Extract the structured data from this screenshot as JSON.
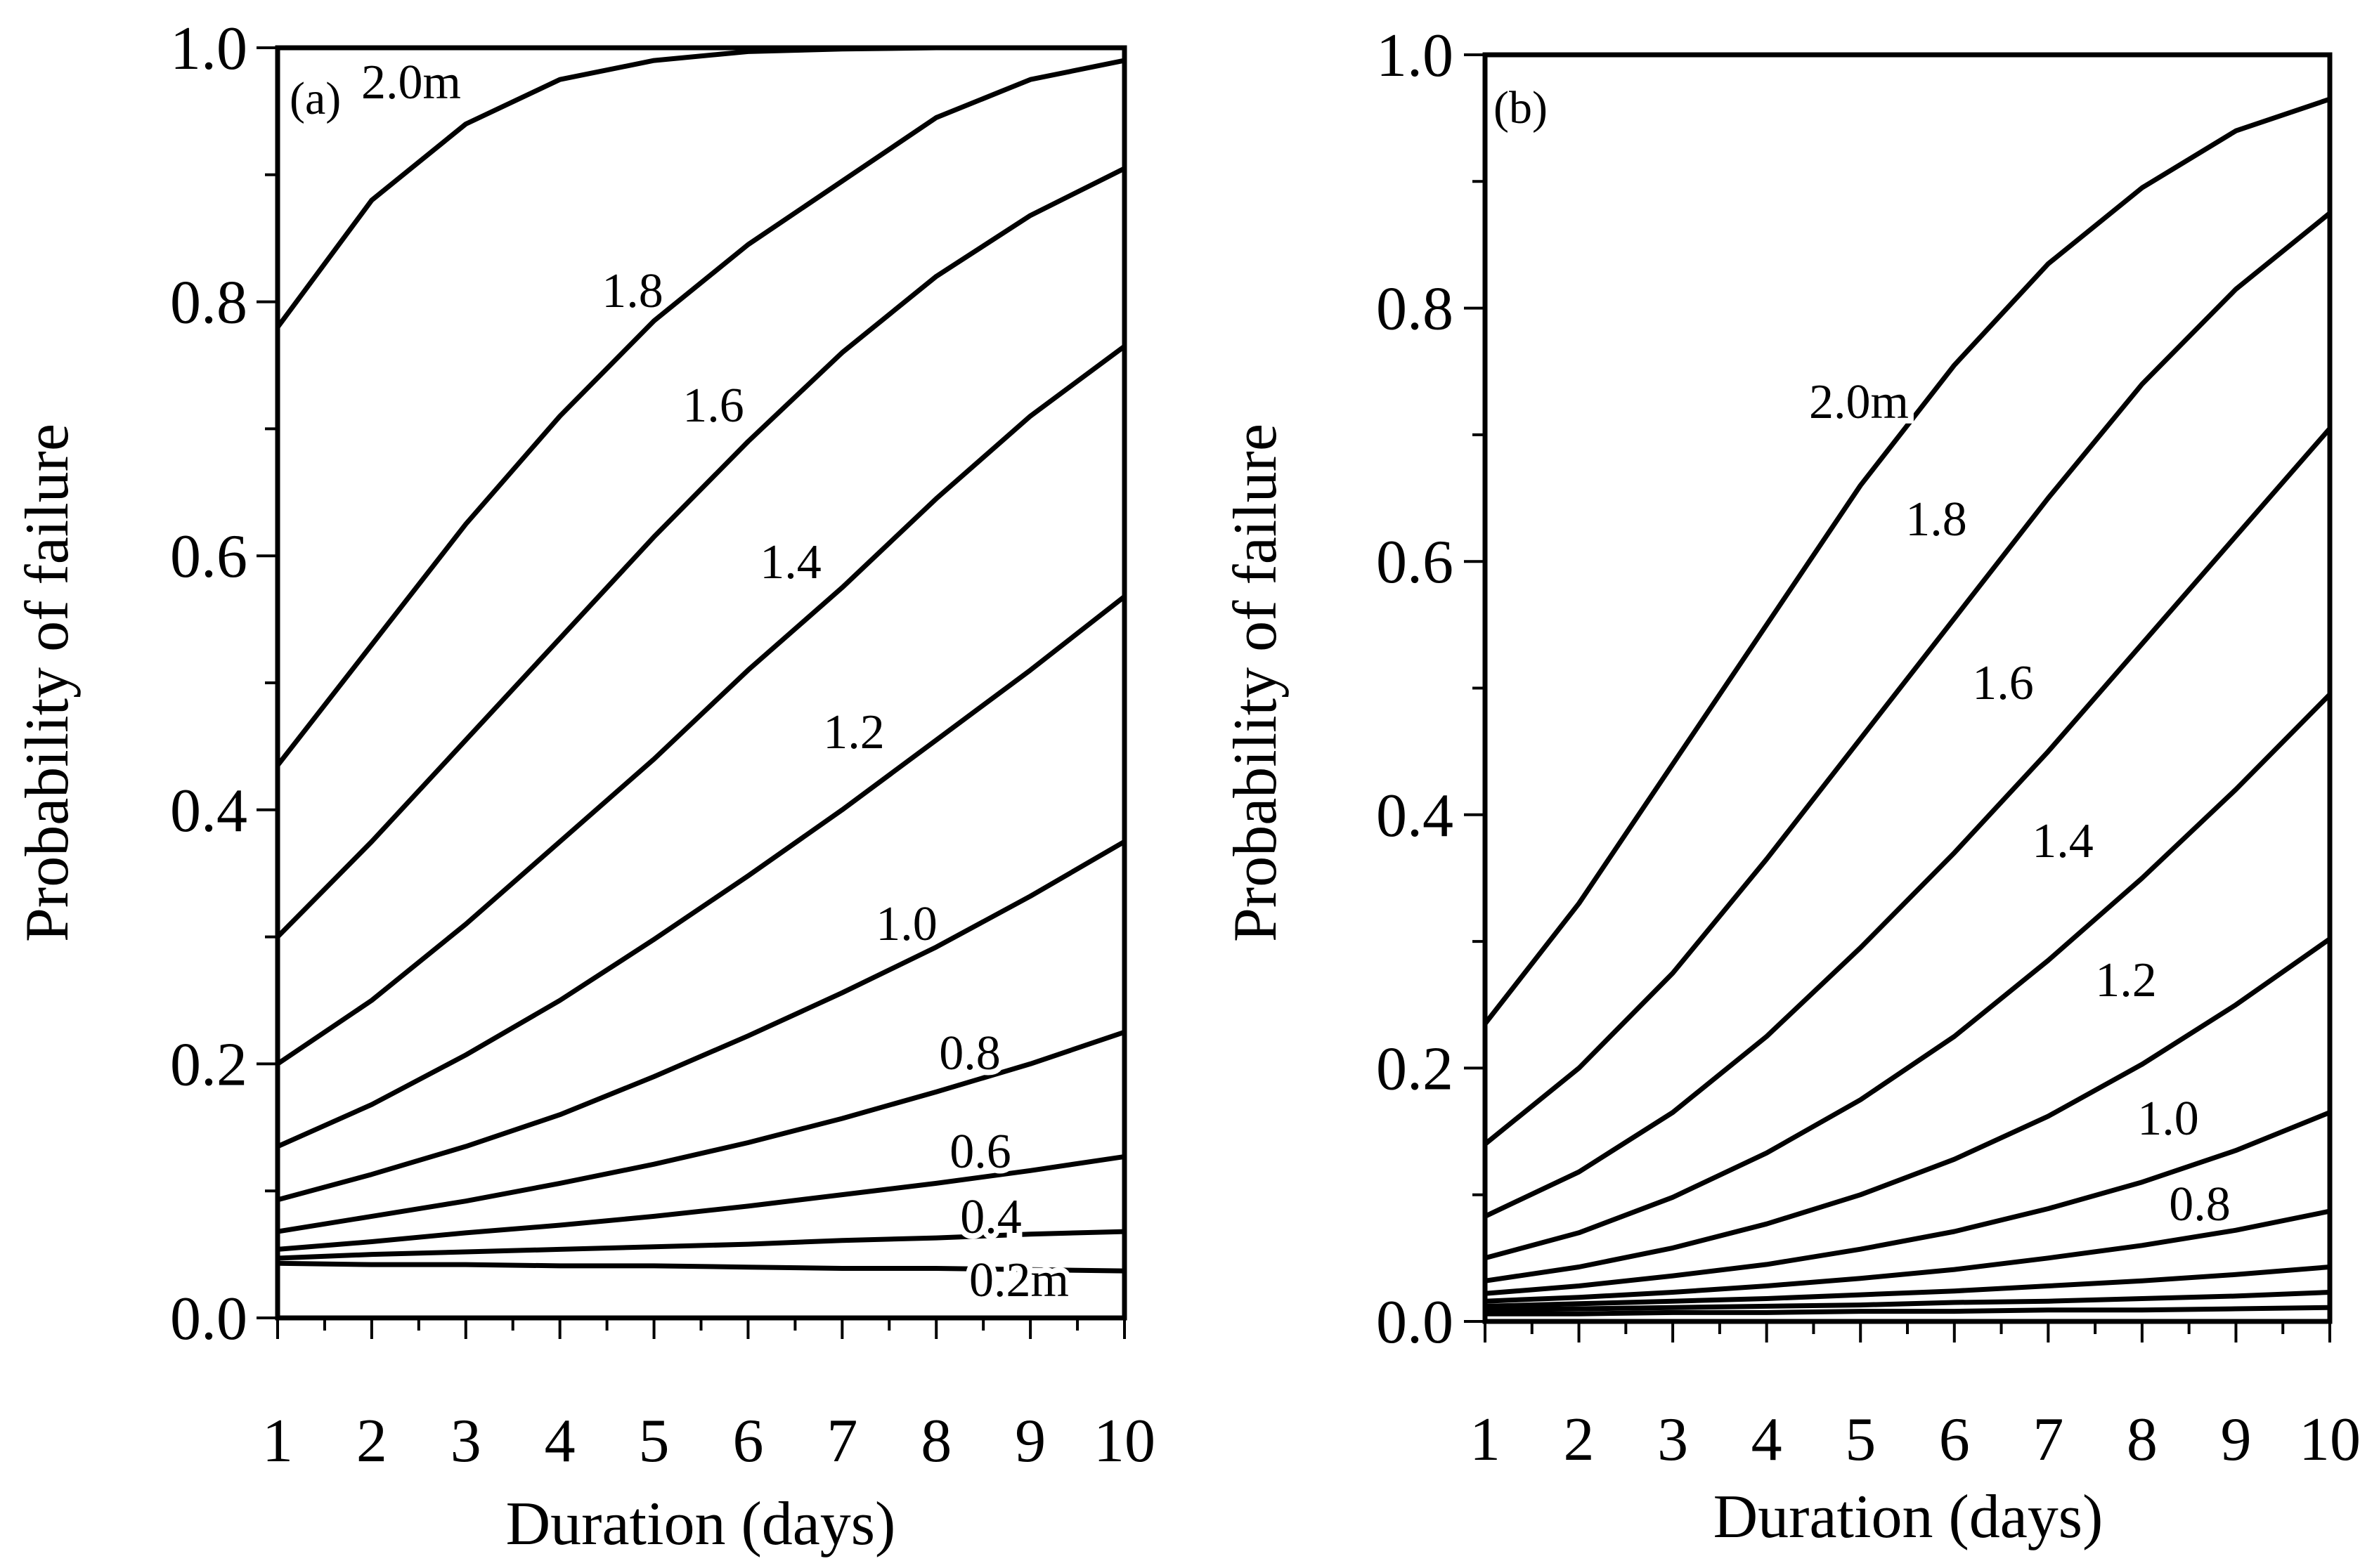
{
  "chart_data": [
    {
      "type": "line",
      "panel_label": "(a)",
      "xlabel": "Duration (days)",
      "ylabel": "Probability of failure",
      "xlim": [
        1,
        10
      ],
      "ylim": [
        0,
        1
      ],
      "x": [
        1,
        2,
        3,
        4,
        5,
        6,
        7,
        8,
        9,
        10
      ],
      "x_ticks": [
        "1",
        "2",
        "3",
        "4",
        "5",
        "6",
        "7",
        "8",
        "9",
        "10"
      ],
      "y_ticks": [
        "0.0",
        "0.2",
        "0.4",
        "0.6",
        "0.8",
        "1.0"
      ],
      "y_tick_values": [
        0,
        0.2,
        0.4,
        0.6,
        0.8,
        1.0
      ],
      "grid": false,
      "series": [
        {
          "name": "2.0m",
          "values": [
            0.78,
            0.88,
            0.94,
            0.975,
            0.99,
            0.997,
            0.999,
            1.0,
            1.0,
            1.0
          ]
        },
        {
          "name": "1.8",
          "values": [
            0.435,
            0.53,
            0.625,
            0.71,
            0.785,
            0.845,
            0.895,
            0.945,
            0.975,
            0.99
          ]
        },
        {
          "name": "1.6",
          "values": [
            0.3,
            0.375,
            0.455,
            0.535,
            0.615,
            0.69,
            0.76,
            0.82,
            0.868,
            0.905
          ]
        },
        {
          "name": "1.4",
          "values": [
            0.2,
            0.25,
            0.31,
            0.375,
            0.44,
            0.51,
            0.575,
            0.645,
            0.71,
            0.765
          ]
        },
        {
          "name": "1.2",
          "values": [
            0.135,
            0.168,
            0.207,
            0.25,
            0.298,
            0.348,
            0.4,
            0.455,
            0.51,
            0.568
          ]
        },
        {
          "name": "1.0",
          "values": [
            0.093,
            0.113,
            0.135,
            0.16,
            0.19,
            0.222,
            0.256,
            0.292,
            0.332,
            0.375
          ]
        },
        {
          "name": "0.8",
          "values": [
            0.068,
            0.08,
            0.092,
            0.106,
            0.121,
            0.138,
            0.157,
            0.178,
            0.2,
            0.225
          ]
        },
        {
          "name": "0.6",
          "values": [
            0.054,
            0.06,
            0.067,
            0.073,
            0.08,
            0.088,
            0.097,
            0.106,
            0.116,
            0.127
          ]
        },
        {
          "name": "0.4",
          "values": [
            0.047,
            0.05,
            0.052,
            0.054,
            0.056,
            0.058,
            0.061,
            0.063,
            0.066,
            0.068
          ]
        },
        {
          "name": "0.2m",
          "values": [
            0.043,
            0.042,
            0.042,
            0.041,
            0.041,
            0.04,
            0.039,
            0.039,
            0.038,
            0.037
          ]
        }
      ]
    },
    {
      "type": "line",
      "panel_label": "(b)",
      "xlabel": "Duration (days)",
      "ylabel": "Probability of failure",
      "xlim": [
        1,
        10
      ],
      "ylim": [
        0,
        1
      ],
      "x": [
        1,
        2,
        3,
        4,
        5,
        6,
        7,
        8,
        9,
        10
      ],
      "x_ticks": [
        "1",
        "2",
        "3",
        "4",
        "5",
        "6",
        "7",
        "8",
        "9",
        "10"
      ],
      "y_ticks": [
        "0.0",
        "0.2",
        "0.4",
        "0.6",
        "0.8",
        "1.0"
      ],
      "y_tick_values": [
        0,
        0.2,
        0.4,
        0.6,
        0.8,
        1.0
      ],
      "grid": false,
      "series": [
        {
          "name": "2.0m",
          "values": [
            0.235,
            0.33,
            0.44,
            0.55,
            0.66,
            0.755,
            0.835,
            0.895,
            0.94,
            0.965
          ]
        },
        {
          "name": "1.8",
          "values": [
            0.14,
            0.2,
            0.275,
            0.365,
            0.46,
            0.555,
            0.65,
            0.74,
            0.815,
            0.875
          ]
        },
        {
          "name": "1.6",
          "values": [
            0.083,
            0.118,
            0.165,
            0.225,
            0.295,
            0.37,
            0.45,
            0.535,
            0.62,
            0.705
          ]
        },
        {
          "name": "1.4",
          "values": [
            0.05,
            0.07,
            0.098,
            0.133,
            0.175,
            0.225,
            0.285,
            0.35,
            0.42,
            0.495
          ]
        },
        {
          "name": "1.2",
          "values": [
            0.032,
            0.043,
            0.058,
            0.077,
            0.1,
            0.128,
            0.162,
            0.203,
            0.25,
            0.302
          ]
        },
        {
          "name": "1.0",
          "values": [
            0.022,
            0.028,
            0.036,
            0.045,
            0.057,
            0.071,
            0.089,
            0.11,
            0.135,
            0.165
          ]
        },
        {
          "name": "0.8",
          "values": [
            0.016,
            0.019,
            0.023,
            0.028,
            0.034,
            0.041,
            0.05,
            0.06,
            0.072,
            0.087
          ]
        },
        {
          "name": "",
          "values": [
            0.012,
            0.014,
            0.016,
            0.018,
            0.021,
            0.024,
            0.028,
            0.032,
            0.037,
            0.043
          ]
        },
        {
          "name": "",
          "values": [
            0.009,
            0.01,
            0.011,
            0.012,
            0.013,
            0.015,
            0.016,
            0.018,
            0.02,
            0.023
          ]
        },
        {
          "name": "",
          "values": [
            0.006,
            0.006,
            0.007,
            0.007,
            0.008,
            0.008,
            0.009,
            0.009,
            0.01,
            0.011
          ]
        }
      ]
    }
  ]
}
